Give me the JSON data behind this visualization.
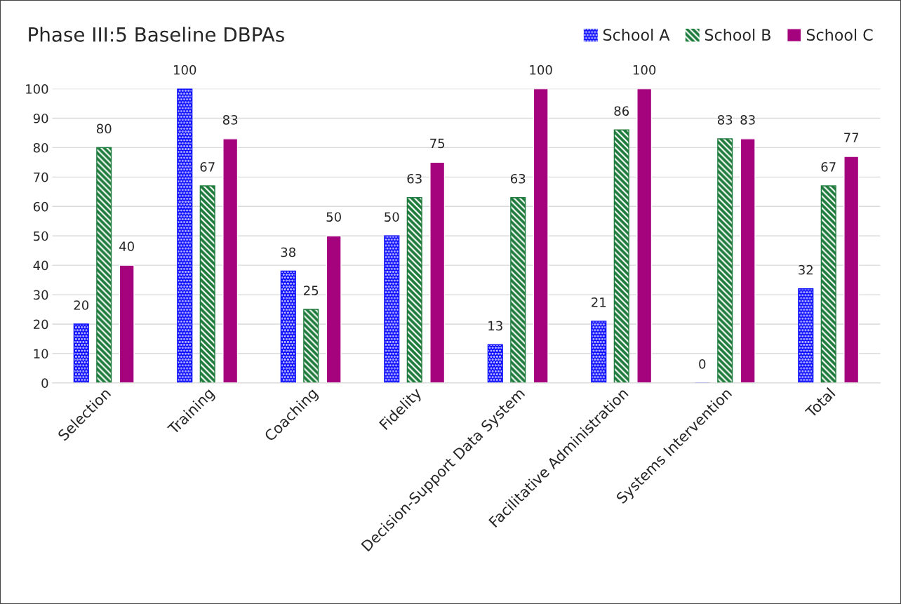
{
  "chart_data": {
    "type": "bar",
    "title": "Phase III:5 Baseline DBPAs",
    "categories": [
      "Selection",
      "Training",
      "Coaching",
      "Fidelity",
      "Decision-Support Data System",
      "Facilitative Administration",
      "Systems Intervention",
      "Total"
    ],
    "series": [
      {
        "name": "School A",
        "color": "#0000ff",
        "values": [
          20,
          100,
          38,
          50,
          13,
          21,
          0,
          32
        ]
      },
      {
        "name": "School B",
        "color": "#1e7b3c",
        "values": [
          80,
          67,
          25,
          63,
          63,
          86,
          83,
          67
        ]
      },
      {
        "name": "School C",
        "color": "#a5027d",
        "values": [
          40,
          83,
          50,
          75,
          100,
          100,
          83,
          77
        ]
      }
    ],
    "ylim": [
      0,
      100
    ],
    "yticks": [
      0,
      10,
      20,
      30,
      40,
      50,
      60,
      70,
      80,
      90,
      100
    ],
    "grid": "y",
    "legend": "top right",
    "data_labels": true
  }
}
